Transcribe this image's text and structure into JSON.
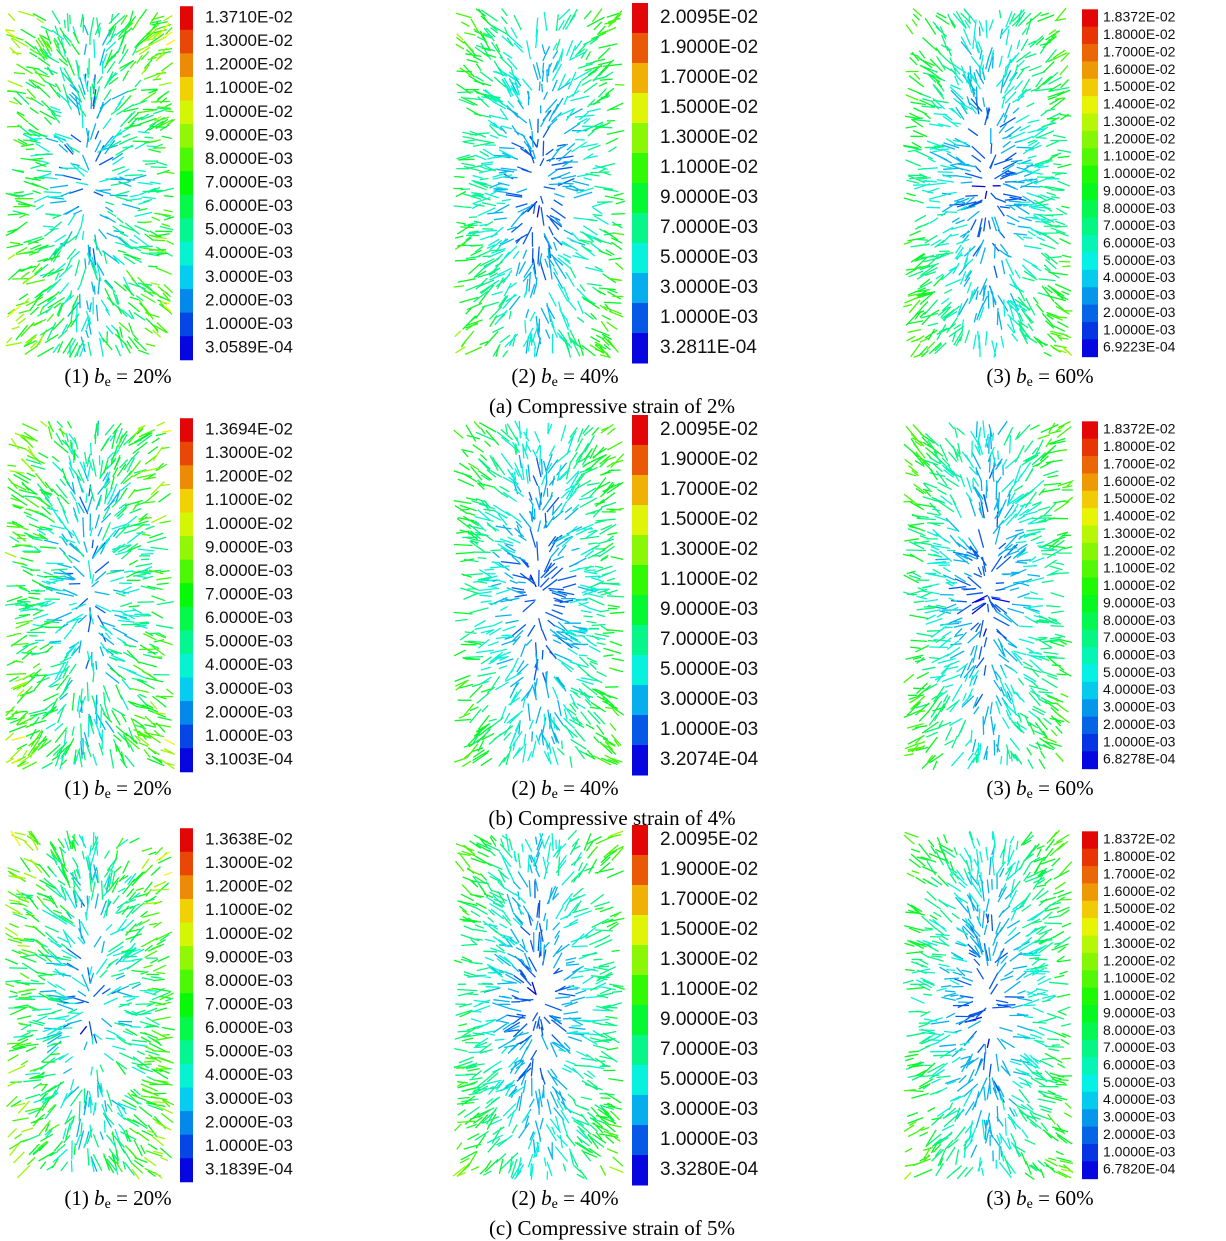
{
  "rows": [
    {
      "caption": "(a) Compressive strain of 2%",
      "panels": [
        {
          "prefix": "(1) ",
          "symbol": "b",
          "subscript": "e",
          "suffix": " = 20%",
          "legend": [
            "1.3710E-02",
            "1.3000E-02",
            "1.2000E-02",
            "1.1000E-02",
            "1.0000E-02",
            "9.0000E-03",
            "8.0000E-03",
            "7.0000E-03",
            "6.0000E-03",
            "5.0000E-03",
            "4.0000E-03",
            "3.0000E-03",
            "2.0000E-03",
            "1.0000E-03",
            "3.0589E-04"
          ]
        },
        {
          "prefix": "(2) ",
          "symbol": "b",
          "subscript": "e",
          "suffix": " = 40%",
          "legend": [
            "2.0095E-02",
            "1.9000E-02",
            "1.7000E-02",
            "1.5000E-02",
            "1.3000E-02",
            "1.1000E-02",
            "9.0000E-03",
            "7.0000E-03",
            "5.0000E-03",
            "3.0000E-03",
            "1.0000E-03",
            "3.2811E-04"
          ]
        },
        {
          "prefix": "(3) ",
          "symbol": "b",
          "subscript": "e",
          "suffix": " = 60%",
          "legend": [
            "1.8372E-02",
            "1.8000E-02",
            "1.7000E-02",
            "1.6000E-02",
            "1.5000E-02",
            "1.4000E-02",
            "1.3000E-02",
            "1.2000E-02",
            "1.1000E-02",
            "1.0000E-02",
            "9.0000E-03",
            "8.0000E-03",
            "7.0000E-03",
            "6.0000E-03",
            "5.0000E-03",
            "4.0000E-03",
            "3.0000E-03",
            "2.0000E-03",
            "1.0000E-03",
            "6.9223E-04"
          ]
        }
      ]
    },
    {
      "caption": "(b) Compressive strain of 4%",
      "panels": [
        {
          "prefix": "(1) ",
          "symbol": "b",
          "subscript": "e",
          "suffix": " = 20%",
          "legend": [
            "1.3694E-02",
            "1.3000E-02",
            "1.2000E-02",
            "1.1000E-02",
            "1.0000E-02",
            "9.0000E-03",
            "8.0000E-03",
            "7.0000E-03",
            "6.0000E-03",
            "5.0000E-03",
            "4.0000E-03",
            "3.0000E-03",
            "2.0000E-03",
            "1.0000E-03",
            "3.1003E-04"
          ]
        },
        {
          "prefix": "(2) ",
          "symbol": "b",
          "subscript": "e",
          "suffix": " = 40%",
          "legend": [
            "2.0095E-02",
            "1.9000E-02",
            "1.7000E-02",
            "1.5000E-02",
            "1.3000E-02",
            "1.1000E-02",
            "9.0000E-03",
            "7.0000E-03",
            "5.0000E-03",
            "3.0000E-03",
            "1.0000E-03",
            "3.2074E-04"
          ]
        },
        {
          "prefix": "(3) ",
          "symbol": "b",
          "subscript": "e",
          "suffix": " = 60%",
          "legend": [
            "1.8372E-02",
            "1.8000E-02",
            "1.7000E-02",
            "1.6000E-02",
            "1.5000E-02",
            "1.4000E-02",
            "1.3000E-02",
            "1.2000E-02",
            "1.1000E-02",
            "1.0000E-02",
            "9.0000E-03",
            "8.0000E-03",
            "7.0000E-03",
            "6.0000E-03",
            "5.0000E-03",
            "4.0000E-03",
            "3.0000E-03",
            "2.0000E-03",
            "1.0000E-03",
            "6.8278E-04"
          ]
        }
      ]
    },
    {
      "caption": "(c) Compressive strain of 5%",
      "panels": [
        {
          "prefix": "(1) ",
          "symbol": "b",
          "subscript": "e",
          "suffix": " = 20%",
          "legend": [
            "1.3638E-02",
            "1.3000E-02",
            "1.2000E-02",
            "1.1000E-02",
            "1.0000E-02",
            "9.0000E-03",
            "8.0000E-03",
            "7.0000E-03",
            "6.0000E-03",
            "5.0000E-03",
            "4.0000E-03",
            "3.0000E-03",
            "2.0000E-03",
            "1.0000E-03",
            "3.1839E-04"
          ]
        },
        {
          "prefix": "(2) ",
          "symbol": "b",
          "subscript": "e",
          "suffix": " = 40%",
          "legend": [
            "2.0095E-02",
            "1.9000E-02",
            "1.7000E-02",
            "1.5000E-02",
            "1.3000E-02",
            "1.1000E-02",
            "9.0000E-03",
            "7.0000E-03",
            "5.0000E-03",
            "3.0000E-03",
            "1.0000E-03",
            "3.3280E-04"
          ]
        },
        {
          "prefix": "(3) ",
          "symbol": "b",
          "subscript": "e",
          "suffix": " = 60%",
          "legend": [
            "1.8372E-02",
            "1.8000E-02",
            "1.7000E-02",
            "1.6000E-02",
            "1.5000E-02",
            "1.4000E-02",
            "1.3000E-02",
            "1.2000E-02",
            "1.1000E-02",
            "1.0000E-02",
            "9.0000E-03",
            "8.0000E-03",
            "7.0000E-03",
            "6.0000E-03",
            "5.0000E-03",
            "4.0000E-03",
            "3.0000E-03",
            "2.0000E-03",
            "1.0000E-03",
            "6.7820E-04"
          ]
        }
      ]
    }
  ]
}
